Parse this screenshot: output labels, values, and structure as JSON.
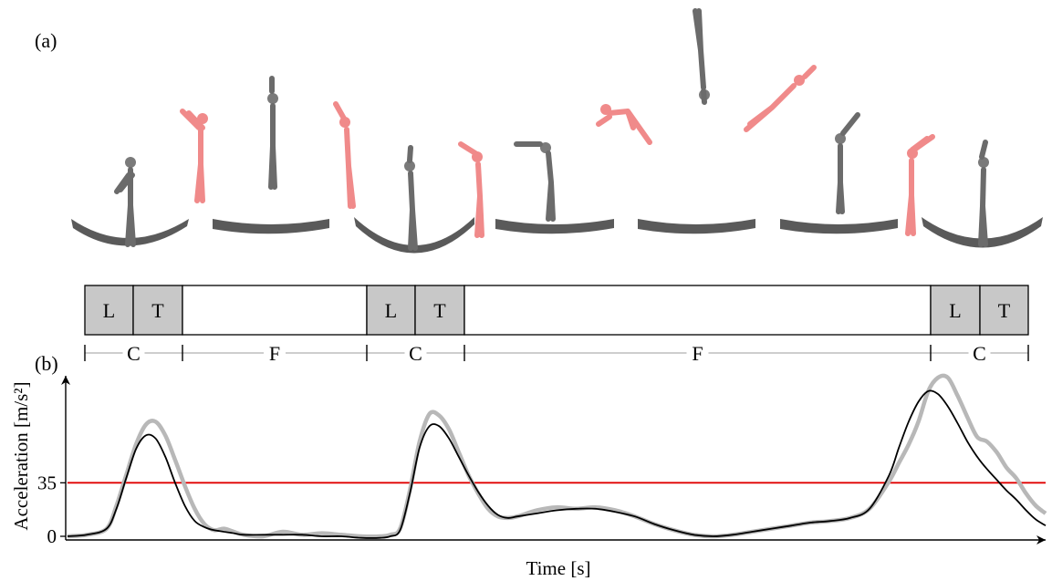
{
  "panel_labels": {
    "a": "(a)",
    "b": "(b)"
  },
  "phase_bar": {
    "cells": [
      {
        "label": "L",
        "filled": true
      },
      {
        "label": "T",
        "filled": true
      },
      {
        "label": "",
        "filled": false
      },
      {
        "label": "L",
        "filled": true
      },
      {
        "label": "T",
        "filled": true
      },
      {
        "label": "",
        "filled": false
      },
      {
        "label": "L",
        "filled": true
      },
      {
        "label": "T",
        "filled": true
      }
    ],
    "brackets": [
      "C",
      "F",
      "C",
      "F",
      "C"
    ],
    "fill_color": "#c8c8c8"
  },
  "figures": [
    {
      "color": "gray",
      "pose": "stand"
    },
    {
      "color": "pink",
      "pose": "arms-up"
    },
    {
      "color": "gray",
      "pose": "straight-up"
    },
    {
      "color": "pink",
      "pose": "arms-up"
    },
    {
      "color": "gray",
      "pose": "stand-arms-up"
    },
    {
      "color": "pink",
      "pose": "arms-up"
    },
    {
      "color": "gray",
      "pose": "pike"
    },
    {
      "color": "pink",
      "pose": "tuck"
    },
    {
      "color": "gray",
      "pose": "inverted"
    },
    {
      "color": "pink",
      "pose": "layout"
    },
    {
      "color": "gray",
      "pose": "stand-arms-up"
    },
    {
      "color": "pink",
      "pose": "arms-up"
    },
    {
      "color": "gray",
      "pose": "stand-arms-up"
    }
  ],
  "chart_data": {
    "type": "line",
    "xlabel": "Time [s]",
    "ylabel": "Acceleration [m/s²]",
    "yticks": [
      "0",
      "35"
    ],
    "threshold": {
      "value": 35,
      "color": "#e00000"
    },
    "xlim": [
      0,
      100
    ],
    "ylim": [
      -2,
      105
    ],
    "series": [
      {
        "color": "#b8b8b8",
        "x": [
          0,
          2,
          4,
          5,
          6,
          7,
          8,
          9,
          10,
          11,
          12,
          13,
          14,
          15,
          16,
          17,
          18,
          20,
          22,
          24,
          26,
          28,
          30,
          32,
          33,
          34,
          35,
          36,
          37,
          38,
          39,
          40,
          41,
          42,
          43,
          44,
          45,
          46,
          48,
          50,
          52,
          54,
          56,
          58,
          60,
          62,
          64,
          66,
          68,
          70,
          72,
          74,
          76,
          78,
          80,
          82,
          84,
          85,
          86,
          87,
          88,
          89,
          90,
          91,
          92,
          93,
          94,
          95,
          96,
          97,
          98,
          99,
          100
        ],
        "y": [
          0,
          1,
          5,
          20,
          40,
          60,
          73,
          75,
          66,
          50,
          33,
          18,
          8,
          4,
          5,
          3,
          1,
          0,
          3,
          1,
          2,
          1,
          0,
          0,
          1,
          5,
          30,
          62,
          80,
          79,
          70,
          55,
          40,
          28,
          18,
          13,
          12,
          13,
          17,
          19,
          18,
          19,
          17,
          13,
          8,
          4,
          1,
          0,
          1,
          3,
          5,
          7,
          9,
          10,
          12,
          18,
          36,
          48,
          60,
          75,
          95,
          112,
          108,
          92,
          78,
          65,
          62,
          55,
          45,
          38,
          28,
          20,
          15
        ]
      },
      {
        "color": "#000000",
        "x": [
          0,
          2,
          4,
          5,
          6,
          7,
          8,
          9,
          10,
          11,
          12,
          13,
          14,
          15,
          16,
          17,
          18,
          20,
          22,
          24,
          26,
          28,
          30,
          32,
          33,
          34,
          35,
          36,
          37,
          38,
          39,
          40,
          41,
          42,
          43,
          44,
          45,
          46,
          48,
          50,
          52,
          54,
          56,
          58,
          60,
          62,
          64,
          66,
          68,
          70,
          72,
          74,
          76,
          78,
          80,
          82,
          84,
          85,
          86,
          87,
          88,
          89,
          90,
          91,
          92,
          93,
          94,
          95,
          96,
          97,
          98,
          99,
          100
        ],
        "y": [
          0,
          1,
          5,
          18,
          38,
          57,
          66,
          64,
          52,
          35,
          20,
          10,
          6,
          4,
          3,
          2,
          1,
          1,
          1,
          1,
          0,
          0,
          -1,
          -1,
          0,
          4,
          28,
          58,
          72,
          72,
          64,
          52,
          40,
          29,
          20,
          14,
          12,
          13,
          15,
          17,
          18,
          18,
          16,
          13,
          8,
          4,
          1,
          0,
          1,
          3,
          5,
          7,
          9,
          10,
          12,
          18,
          40,
          58,
          75,
          88,
          95,
          93,
          85,
          74,
          62,
          52,
          44,
          37,
          30,
          24,
          17,
          11,
          7
        ]
      }
    ]
  }
}
